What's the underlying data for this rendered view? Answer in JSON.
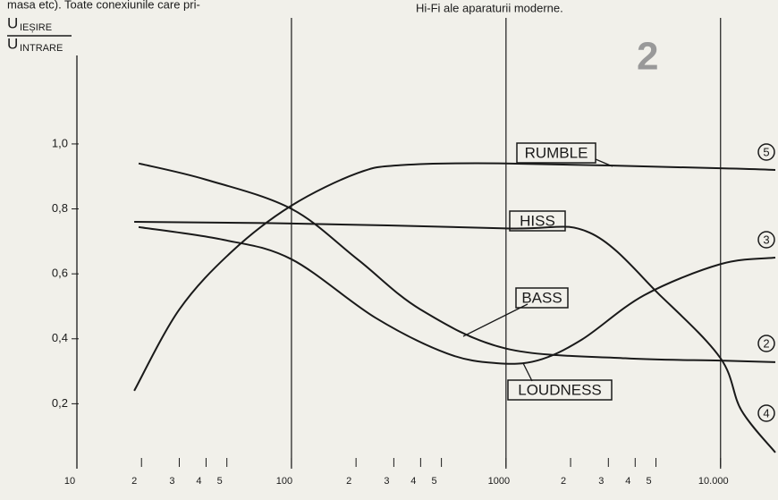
{
  "chart_data": {
    "type": "line",
    "page_text": [
      "masa etc). Toate conexiunile care pri-",
      "Hi-Fi ale aparaturii moderne."
    ],
    "figure_number": "2",
    "y_label": {
      "numerator": {
        "main": "U",
        "sub": "IEȘIRE"
      },
      "denominator": {
        "main": "U",
        "sub": "INTRARE"
      }
    },
    "x_scale": "log",
    "xlim": [
      10,
      18000
    ],
    "ylim": [
      0,
      1.3
    ],
    "xticks": [
      10,
      {
        "value": 20,
        "label": "2"
      },
      {
        "value": 30,
        "label": "3"
      },
      {
        "value": 40,
        "label": "4"
      },
      {
        "value": 50,
        "label": "5"
      },
      100,
      {
        "value": 200,
        "label": "2"
      },
      {
        "value": 300,
        "label": "3"
      },
      {
        "value": 400,
        "label": "4"
      },
      {
        "value": 500,
        "label": "5"
      },
      1000,
      {
        "value": 2000,
        "label": "2"
      },
      {
        "value": 3000,
        "label": "3"
      },
      {
        "value": 4000,
        "label": "4"
      },
      {
        "value": 5000,
        "label": "5"
      },
      {
        "value": 10000,
        "label": "10.000"
      }
    ],
    "xgrid": [
      100,
      1000,
      10000
    ],
    "yticks": [
      {
        "value": 0.2,
        "label": "0,2"
      },
      {
        "value": 0.4,
        "label": "0,4"
      },
      {
        "value": 0.6,
        "label": "0,6"
      },
      {
        "value": 0.8,
        "label": "0,8"
      },
      {
        "value": 1.0,
        "label": "1,0"
      }
    ],
    "color": "#1a1a1a",
    "series": [
      {
        "name": "RUMBLE",
        "x": [
          18.5,
          30,
          53,
          100,
          203,
          330,
          1000,
          10000,
          18000
        ],
        "values": [
          0.24,
          0.49,
          0.67,
          0.81,
          0.91,
          0.935,
          0.94,
          0.925,
          0.92
        ]
      },
      {
        "name": "HISS",
        "x": [
          18.5,
          100,
          1000,
          2450,
          5300,
          10000,
          12500,
          18000
        ],
        "values": [
          0.76,
          0.755,
          0.74,
          0.727,
          0.53,
          0.34,
          0.18,
          0.05
        ]
      },
      {
        "name": "BASS",
        "x": [
          19.4,
          40,
          100,
          203,
          400,
          1000,
          3600,
          10000,
          18000
        ],
        "values": [
          0.94,
          0.89,
          0.8,
          0.645,
          0.49,
          0.37,
          0.34,
          0.333,
          0.328
        ]
      },
      {
        "name": "LOUDNESS",
        "x": [
          19.4,
          48,
          100,
          246,
          530,
          900,
          1400,
          2250,
          4400,
          10000,
          18000
        ],
        "values": [
          0.744,
          0.705,
          0.645,
          0.465,
          0.355,
          0.325,
          0.333,
          0.397,
          0.534,
          0.63,
          0.65
        ]
      }
    ],
    "curve_numbers": [
      "5",
      "3",
      "2",
      "4"
    ]
  }
}
